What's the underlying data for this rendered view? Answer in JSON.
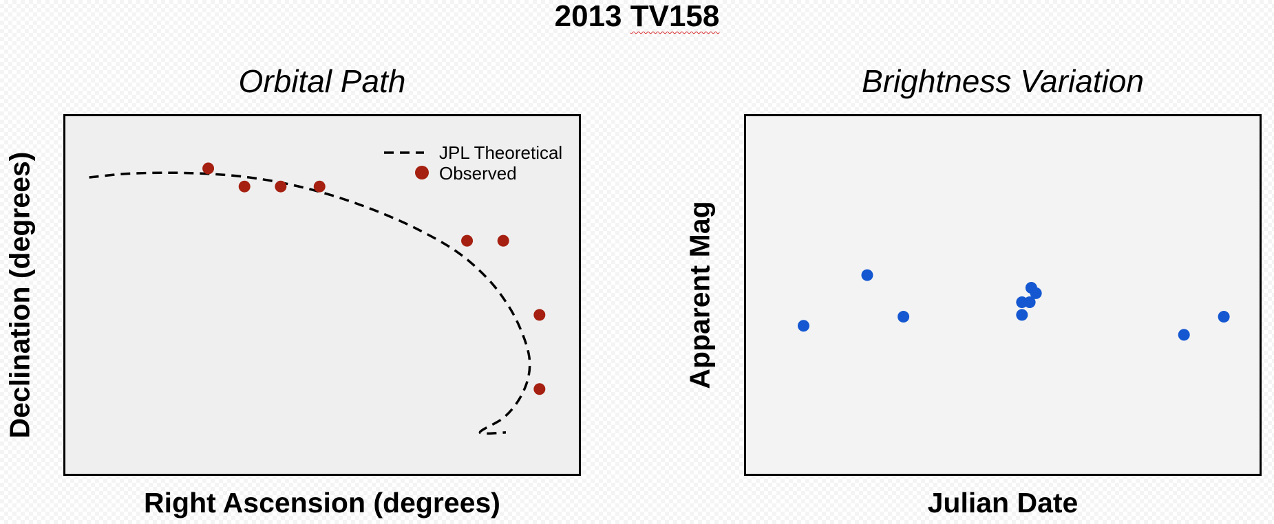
{
  "suptitle": {
    "prefix": "2013 ",
    "flagged": "TV158"
  },
  "chart_data": [
    {
      "type": "line",
      "title": "Orbital Path",
      "xlabel": "Right Ascension (degrees)",
      "ylabel": "Declination (degrees)",
      "xlim": [
        0,
        100
      ],
      "ylim": [
        0,
        100
      ],
      "grid": false,
      "legend_position": "top-right",
      "background": "#efefef",
      "series": [
        {
          "name": "JPL Theoretical",
          "style": "dashed-line",
          "color": "#000000",
          "x": [
            5,
            12,
            20,
            28,
            36,
            44,
            52,
            60,
            68,
            76,
            82,
            86,
            88.5,
            90,
            89.8,
            88,
            85,
            80.5,
            85.5
          ],
          "y": [
            82.5,
            83.5,
            83.8,
            83.5,
            82.5,
            80.5,
            77.5,
            73.5,
            68.5,
            62,
            54.5,
            47,
            40,
            33,
            27,
            21,
            16,
            12,
            12
          ]
        },
        {
          "name": "Observed",
          "style": "markers",
          "color": "#a52010",
          "x": [
            28,
            35,
            42,
            49.5,
            78,
            85,
            92,
            92
          ],
          "y": [
            85,
            80,
            80,
            80,
            65,
            65,
            44.5,
            24
          ]
        }
      ]
    },
    {
      "type": "scatter",
      "title": "Brightness Variation",
      "xlabel": "Julian Date",
      "ylabel": "Apparent Mag",
      "xlim": [
        0,
        100
      ],
      "ylim": [
        0,
        100
      ],
      "grid": false,
      "background": "#f3f3f3",
      "series": [
        {
          "color": "#1457d1",
          "x": [
            11.5,
            23.8,
            30.8,
            53.7,
            55.2,
            55.5,
            56.4,
            53.7,
            85,
            92.7
          ],
          "y": [
            41.5,
            55.5,
            44,
            44.5,
            48,
            52,
            50.5,
            48,
            39,
            44
          ]
        }
      ]
    }
  ]
}
